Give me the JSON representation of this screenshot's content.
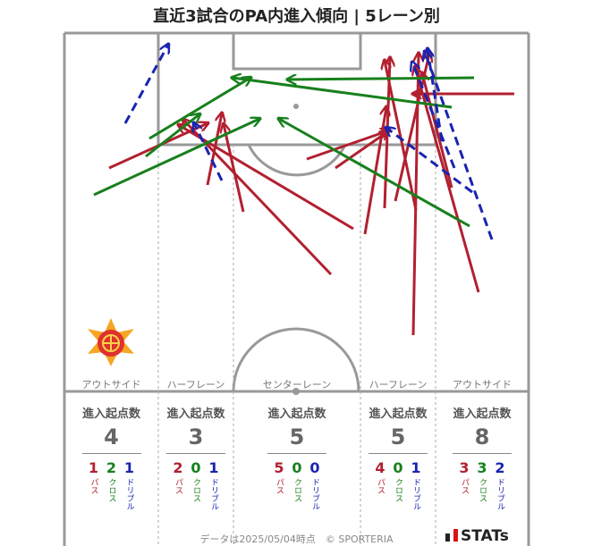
{
  "title": "直近3試合のPA内進入傾向 | 5レーン別",
  "colors": {
    "pass": "#b22030",
    "cross": "#17801c",
    "dribble": "#1a24b0",
    "line": "#999999"
  },
  "lanes": [
    {
      "name": "アウトサイド",
      "head": "進入起点数",
      "count": "4",
      "pass": "1",
      "cross": "2",
      "dribble": "1"
    },
    {
      "name": "ハーフレーン",
      "head": "進入起点数",
      "count": "3",
      "pass": "2",
      "cross": "0",
      "dribble": "1"
    },
    {
      "name": "センターレーン",
      "head": "進入起点数",
      "count": "5",
      "pass": "5",
      "cross": "0",
      "dribble": "0"
    },
    {
      "name": "ハーフレーン",
      "head": "進入起点数",
      "count": "5",
      "pass": "4",
      "cross": "0",
      "dribble": "1"
    },
    {
      "name": "アウトサイド",
      "head": "進入起点数",
      "count": "8",
      "pass": "3",
      "cross": "3",
      "dribble": "2"
    }
  ],
  "stat_labels": {
    "pass": "パス",
    "cross": "クロス",
    "dribble": "ドリブル"
  },
  "footer": "データは2025/05/04時点　© SPORTERIA",
  "brand": "STATs",
  "team_logo": "crest-icon"
}
